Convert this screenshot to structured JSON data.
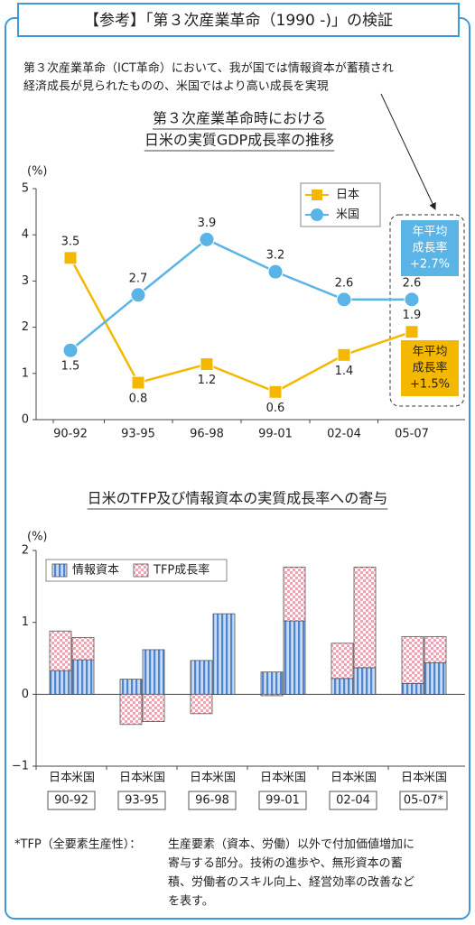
{
  "header": {
    "title": "【参考】「第３次産業革命（1990 -)」の検証"
  },
  "description": [
    "第３次産業革命（ICT革命）において、我が国では情報資本が蓄積され",
    "経済成長が見られたものの、米国ではより高い成長を実現"
  ],
  "chart_data": [
    {
      "type": "line",
      "title": [
        "第３次産業革命時における",
        "日米の実質GDP成長率の推移"
      ],
      "y_unit": "(%)",
      "categories": [
        "90-92",
        "93-95",
        "96-98",
        "99-01",
        "02-04",
        "05-07"
      ],
      "series": [
        {
          "name": "日本",
          "color": "#f5b800",
          "marker": "square",
          "values": [
            3.5,
            0.8,
            1.2,
            0.6,
            1.4,
            1.9
          ]
        },
        {
          "name": "米国",
          "color": "#5ab4e5",
          "marker": "circle",
          "values": [
            1.5,
            2.7,
            3.9,
            3.2,
            2.6,
            2.6
          ]
        }
      ],
      "annotations": [
        {
          "lines": [
            "年平均",
            "成長率",
            "+2.7%"
          ],
          "color": "#5ab4e5"
        },
        {
          "lines": [
            "年平均",
            "成長率",
            "+1.5%"
          ],
          "color": "#f5b800"
        }
      ],
      "ylim": [
        0,
        5
      ],
      "yticks": [
        0,
        1,
        2,
        3,
        4,
        5
      ]
    },
    {
      "type": "stacked_bar",
      "title": "日米のTFP及び情報資本の実質成長率への寄与",
      "y_unit": "(%)",
      "categories": [
        "90-92",
        "93-95",
        "96-98",
        "99-01",
        "02-04",
        "05-07*"
      ],
      "bar_labels": [
        "日本",
        "米国"
      ],
      "series": [
        {
          "name": "情報資本",
          "color": "#5b8fd6",
          "values": [
            [
              0.33,
              0.48
            ],
            [
              0.21,
              0.62
            ],
            [
              0.47,
              1.12
            ],
            [
              0.31,
              1.02
            ],
            [
              0.22,
              0.37
            ],
            [
              0.15,
              0.44
            ]
          ]
        },
        {
          "name": "TFP成長率",
          "color": "#ee8a9c",
          "values": [
            [
              0.55,
              0.31
            ],
            [
              -0.42,
              -0.38
            ],
            [
              -0.27,
              0
            ],
            [
              -0.02,
              0.75
            ],
            [
              0.49,
              1.4
            ],
            [
              0.65,
              0.36
            ]
          ]
        }
      ],
      "ylim": [
        -1,
        2
      ],
      "yticks": [
        {
          "value": -1,
          "label": "−1"
        },
        0,
        1,
        2
      ]
    }
  ],
  "footnote": {
    "term": "*TFP（全要素生産性）：",
    "lines": [
      "生産要素（資本、労働）以外で付加価値増加に",
      "寄与する部分。技術の進歩や、無形資本の蓄",
      "積、労働者のスキル向上、経営効率の改善など",
      "を表す。"
    ]
  }
}
